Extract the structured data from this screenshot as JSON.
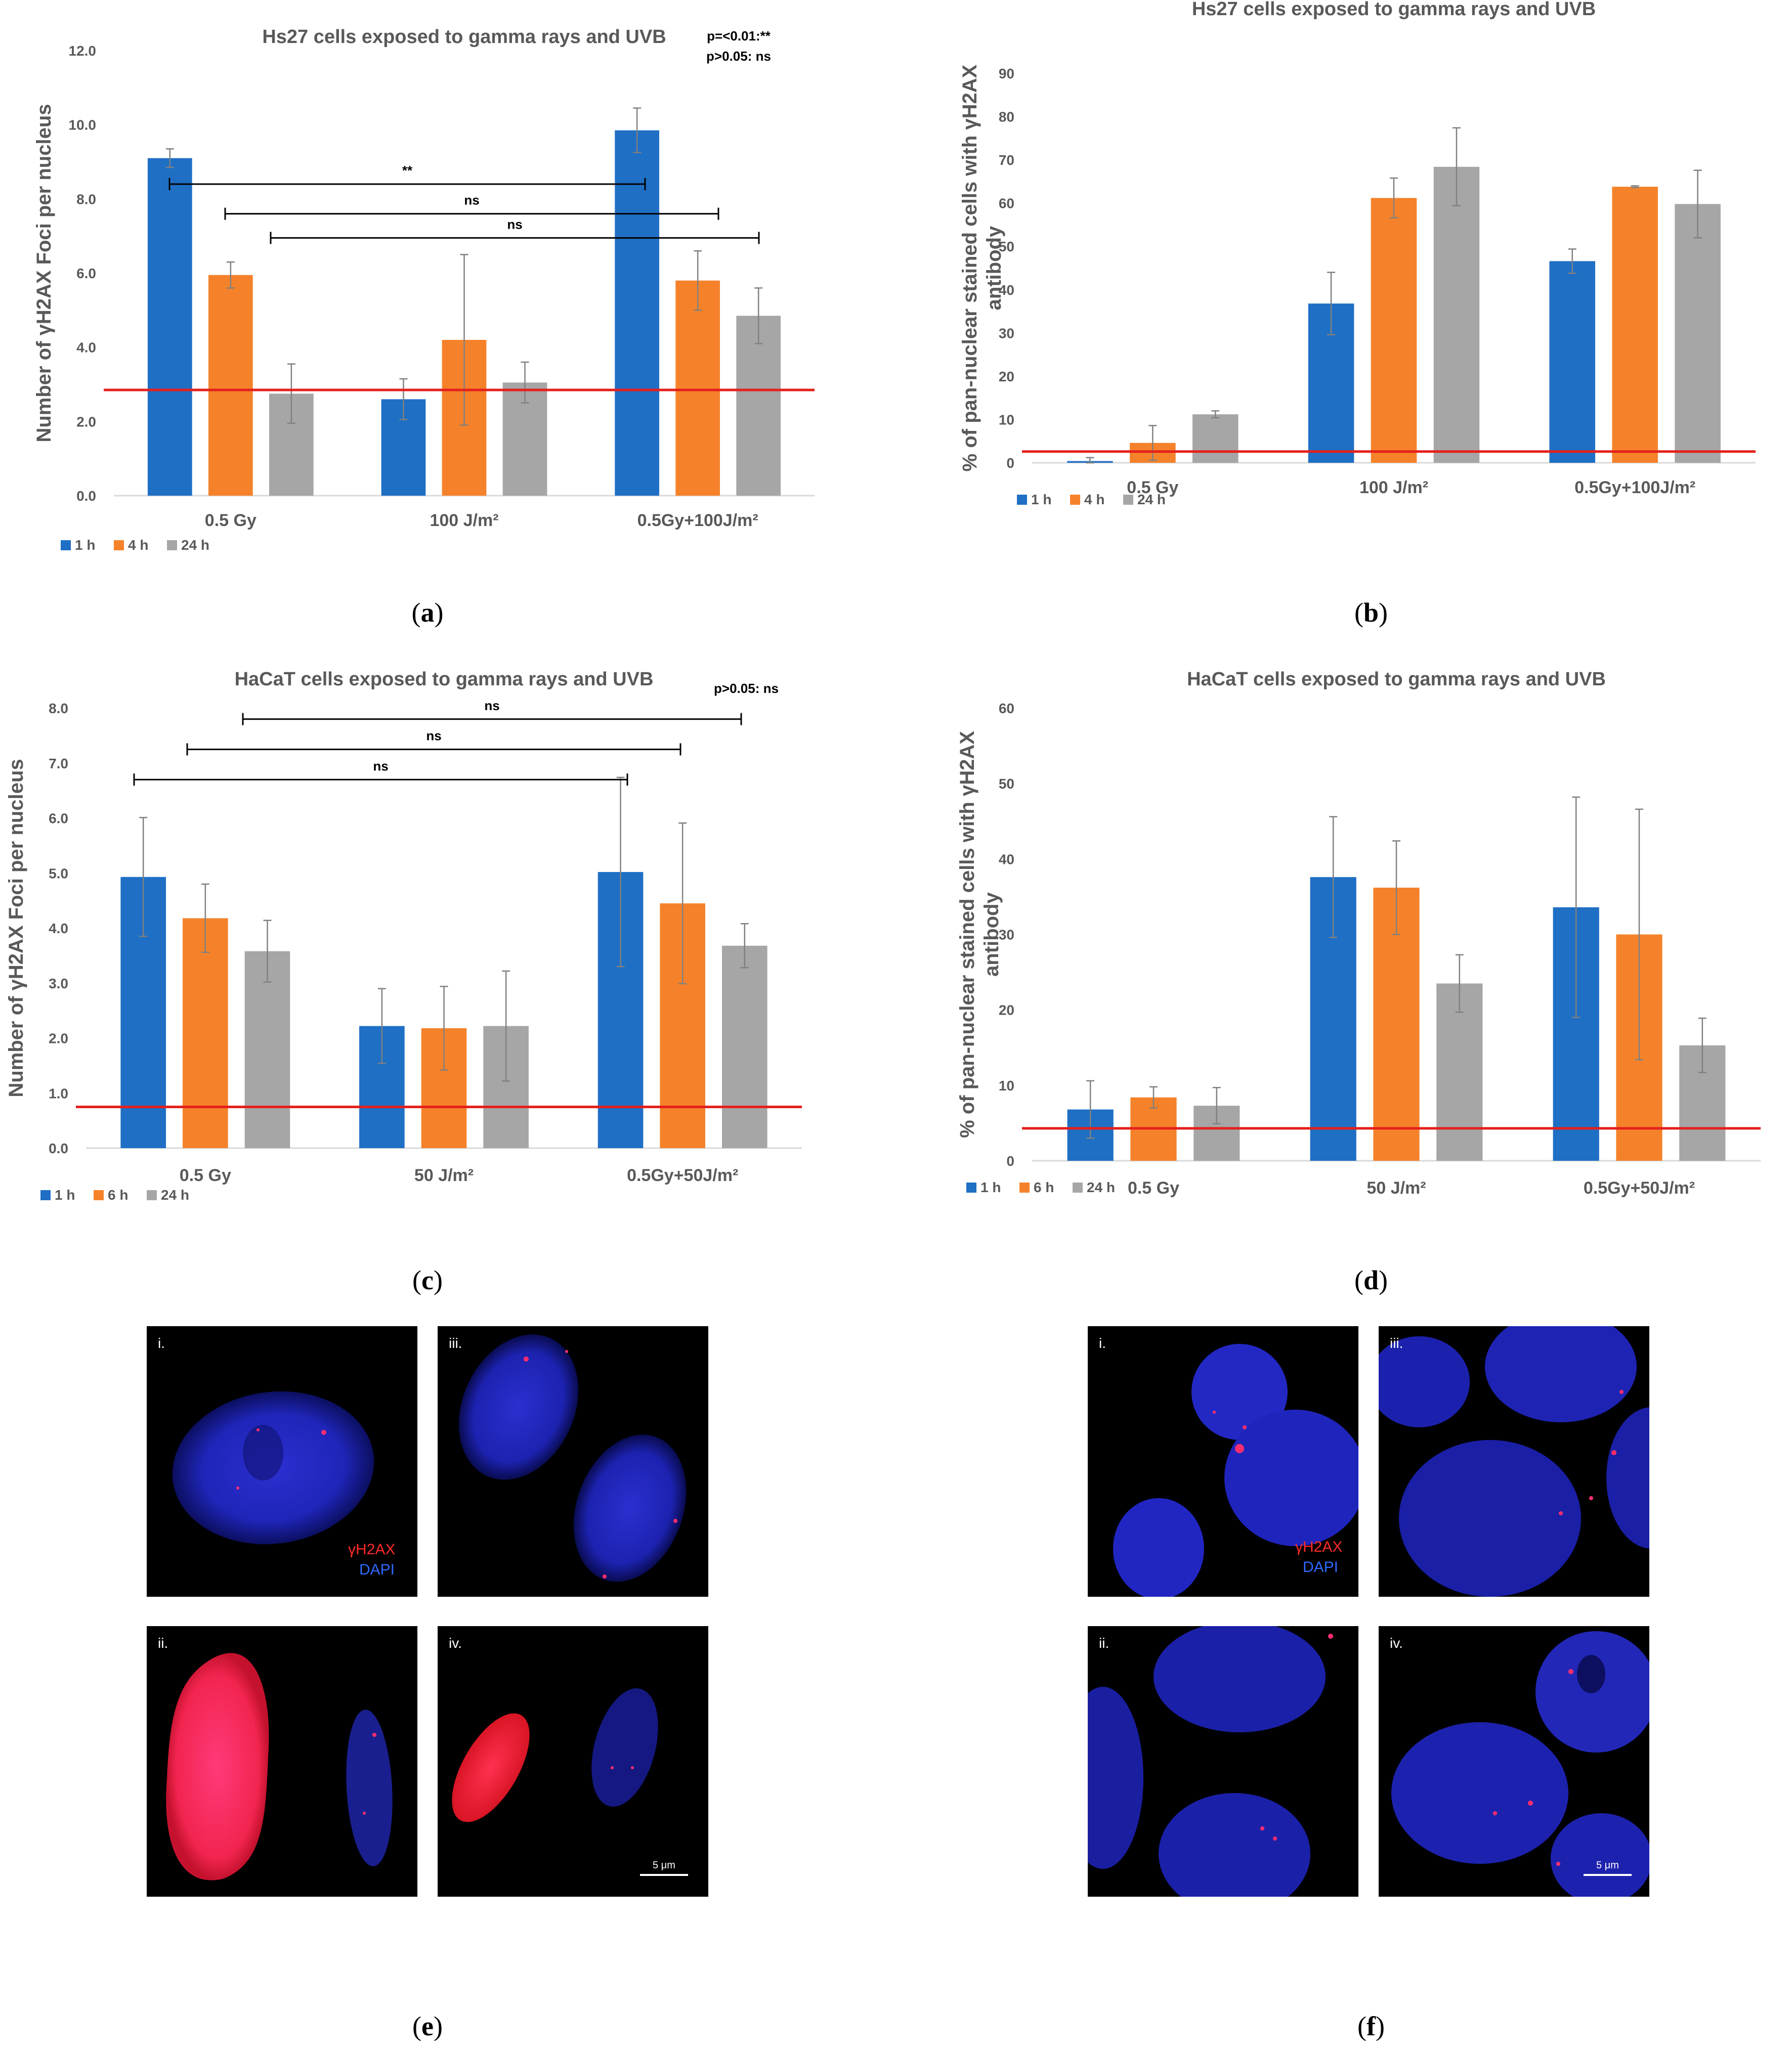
{
  "colors": {
    "blue": "#1f6fc5",
    "orange": "#f5822a",
    "grey": "#a6a6a6",
    "threshold": "#e4201c",
    "axis_text": "#595959"
  },
  "panel_labels": {
    "a": "a",
    "b": "b",
    "c": "c",
    "d": "d",
    "e": "e",
    "f": "f"
  },
  "chart_data": [
    {
      "id": "a",
      "type": "bar",
      "title": "Hs27 cells exposed to gamma rays and UVB",
      "ylabel": "Number of γH2AX Foci per nucleus",
      "categories": [
        "0.5 Gy",
        "100 J/m²",
        "0.5Gy+100J/m²"
      ],
      "yticks": [
        "0.0",
        "2.0",
        "4.0",
        "6.0",
        "8.0",
        "10.0",
        "12.0"
      ],
      "ylim": [
        0,
        12
      ],
      "series": [
        {
          "name": "1 h",
          "values": [
            9.1,
            2.6,
            9.85
          ],
          "errors": [
            0.25,
            0.55,
            0.6
          ]
        },
        {
          "name": "4 h",
          "values": [
            5.95,
            4.2,
            5.8
          ],
          "errors": [
            0.35,
            2.3,
            0.8
          ]
        },
        {
          "name": "24 h",
          "values": [
            2.75,
            3.05,
            4.85
          ],
          "errors": [
            0.8,
            0.55,
            0.75
          ]
        }
      ],
      "threshold": 2.85,
      "pvalue_lines": [
        "p=<0.01:**",
        "p>0.05: ns"
      ],
      "brackets": [
        {
          "label": "**",
          "y": 8.4
        },
        {
          "label": "ns",
          "y": 7.6
        },
        {
          "label": "ns",
          "y": 6.95
        }
      ]
    },
    {
      "id": "b",
      "type": "bar",
      "title": "Hs27 cells exposed to gamma rays and UVB",
      "ylabel": "% of pan-nuclear stained cells with γH2AX antibody",
      "ylabel_lines": [
        "% of pan-nuclear stained cells with γH2AX",
        "antibody"
      ],
      "categories": [
        "0.5 Gy",
        "100 J/m²",
        "0.5Gy+100J/m²"
      ],
      "yticks": [
        "0",
        "10",
        "20",
        "30",
        "40",
        "50",
        "60",
        "70",
        "80",
        "90"
      ],
      "ylim": [
        0,
        90
      ],
      "series": [
        {
          "name": "1 h",
          "values": [
            0.4,
            36.8,
            46.6
          ],
          "errors": [
            0.8,
            7.2,
            2.8
          ]
        },
        {
          "name": "4 h",
          "values": [
            4.6,
            61.2,
            63.8
          ],
          "errors": [
            4.0,
            4.6,
            0.2
          ]
        },
        {
          "name": "24 h",
          "values": [
            11.2,
            68.4,
            59.8
          ],
          "errors": [
            0.8,
            9.0,
            7.8
          ]
        }
      ],
      "threshold": 2.6,
      "pvalue_lines": [],
      "brackets": []
    },
    {
      "id": "c",
      "type": "bar",
      "title": "HaCaT cells exposed to gamma rays and UVB",
      "ylabel": "Number of γH2AX Foci per nucleus",
      "categories": [
        "0.5 Gy",
        "50 J/m²",
        "0.5Gy+50J/m²"
      ],
      "yticks": [
        "0.0",
        "1.0",
        "2.0",
        "3.0",
        "4.0",
        "5.0",
        "6.0",
        "7.0",
        "8.0"
      ],
      "ylim": [
        0,
        8
      ],
      "series": [
        {
          "name": "1 h",
          "values": [
            4.93,
            2.22,
            5.02
          ],
          "errors": [
            1.08,
            0.68,
            1.72
          ]
        },
        {
          "name": "6 h",
          "values": [
            4.18,
            2.18,
            4.45
          ],
          "errors": [
            0.62,
            0.76,
            1.46
          ]
        },
        {
          "name": "24 h",
          "values": [
            3.58,
            2.22,
            3.68
          ],
          "errors": [
            0.56,
            1.0,
            0.4
          ]
        }
      ],
      "threshold": 0.75,
      "pvalue_lines": [
        "p>0.05: ns"
      ],
      "brackets": [
        {
          "label": "ns",
          "y": 7.8
        },
        {
          "label": "ns",
          "y": 7.25
        },
        {
          "label": "ns",
          "y": 6.7
        }
      ]
    },
    {
      "id": "d",
      "type": "bar",
      "title": "HaCaT cells exposed to gamma rays and UVB",
      "ylabel": "% of pan-nuclear stained cells with γH2AX antibody",
      "ylabel_lines": [
        "% of pan-nuclear stained cells with γH2AX",
        "antibody"
      ],
      "categories": [
        "0.5 Gy",
        "50 J/m²",
        "0.5Gy+50J/m²"
      ],
      "yticks": [
        "0",
        "10",
        "20",
        "30",
        "40",
        "50",
        "60"
      ],
      "ylim": [
        0,
        60
      ],
      "series": [
        {
          "name": "1 h",
          "values": [
            6.8,
            37.6,
            33.6
          ],
          "errors": [
            3.8,
            8.0,
            14.6
          ]
        },
        {
          "name": "6 h",
          "values": [
            8.4,
            36.2,
            30.0
          ],
          "errors": [
            1.4,
            6.2,
            16.6
          ]
        },
        {
          "name": "24 h",
          "values": [
            7.3,
            23.5,
            15.3
          ],
          "errors": [
            2.4,
            3.8,
            3.6
          ]
        }
      ],
      "threshold": 4.3,
      "pvalue_lines": [],
      "brackets": []
    }
  ],
  "micrographs": {
    "e": {
      "labels": [
        "i.",
        "iii.",
        "ii.",
        "iv."
      ],
      "legend_red": "γH2AX",
      "legend_blue": "DAPI",
      "scale": "5 μm"
    },
    "f": {
      "labels": [
        "i.",
        "iii.",
        "ii.",
        "iv."
      ],
      "legend_red": "γH2AX",
      "legend_blue": "DAPI",
      "scale": "5 μm"
    }
  }
}
